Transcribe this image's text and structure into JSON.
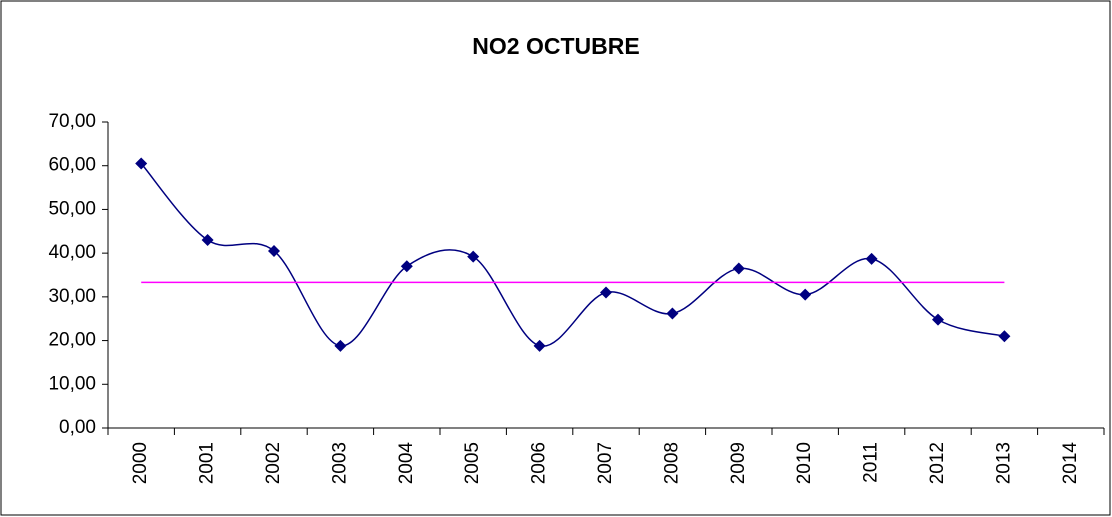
{
  "chart_data": {
    "type": "line",
    "title": "NO2 OCTUBRE",
    "categories": [
      "2000",
      "2001",
      "2002",
      "2003",
      "2004",
      "2005",
      "2006",
      "2007",
      "2008",
      "2009",
      "2010",
      "2011",
      "2012",
      "2013",
      "2014"
    ],
    "series": [
      {
        "color": "#000080",
        "smooth": true,
        "markers": true,
        "values": [
          60.5,
          43.0,
          40.5,
          18.8,
          37.0,
          39.2,
          18.8,
          31.0,
          26.2,
          36.5,
          30.5,
          38.7,
          24.8,
          21.0,
          null
        ]
      },
      {
        "color": "#ff00ff",
        "smooth": false,
        "markers": false,
        "values": [
          33.3,
          33.3,
          33.3,
          33.3,
          33.3,
          33.3,
          33.3,
          33.3,
          33.3,
          33.3,
          33.3,
          33.3,
          33.3,
          33.3,
          null
        ]
      }
    ],
    "ylim": [
      0,
      70
    ],
    "yticks": [
      {
        "value": 0,
        "label": "0,00"
      },
      {
        "value": 10,
        "label": "10,00"
      },
      {
        "value": 20,
        "label": "20,00"
      },
      {
        "value": 30,
        "label": "30,00"
      },
      {
        "value": 40,
        "label": "40,00"
      },
      {
        "value": 50,
        "label": "50,00"
      },
      {
        "value": 60,
        "label": "60,00"
      },
      {
        "value": 70,
        "label": "70,00"
      }
    ],
    "grid": false
  }
}
